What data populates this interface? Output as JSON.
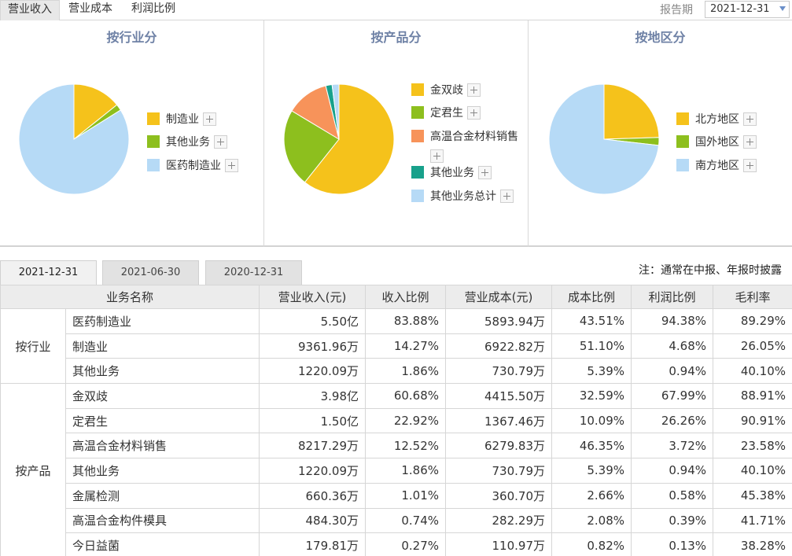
{
  "top_tabs": [
    "营业收入",
    "营业成本",
    "利润比例"
  ],
  "period": {
    "label": "报告期",
    "value": "2021-12-31"
  },
  "colors": {
    "yellow": "#F5C21B",
    "green": "#8DBF1E",
    "lightblue": "#B6DAF6",
    "orange": "#F7935A",
    "teal": "#18A18B",
    "title": "#6F82A6"
  },
  "panels": [
    {
      "title": "按行业分",
      "slices": [
        {
          "name": "制造业",
          "value": 14.27,
          "color": "#F5C21B"
        },
        {
          "name": "其他业务",
          "value": 1.86,
          "color": "#8DBF1E"
        },
        {
          "name": "医药制造业",
          "value": 83.88,
          "color": "#B6DAF6"
        }
      ]
    },
    {
      "title": "按产品分",
      "slices": [
        {
          "name": "金双歧",
          "value": 60.68,
          "color": "#F5C21B"
        },
        {
          "name": "定君生",
          "value": 22.92,
          "color": "#8DBF1E"
        },
        {
          "name": "高温合金材料销售",
          "value": 12.52,
          "color": "#F7935A"
        },
        {
          "name": "其他业务",
          "value": 1.86,
          "color": "#18A18B"
        },
        {
          "name": "其他业务总计",
          "value": 2.02,
          "color": "#B6DAF6"
        }
      ]
    },
    {
      "title": "按地区分",
      "slices": [
        {
          "name": "北方地区",
          "value": 24.5,
          "color": "#F5C21B"
        },
        {
          "name": "国外地区",
          "value": 2.3,
          "color": "#8DBF1E"
        },
        {
          "name": "南方地区",
          "value": 73.2,
          "color": "#B6DAF6"
        }
      ]
    }
  ],
  "date_tabs": [
    "2021-12-31",
    "2021-06-30",
    "2020-12-31"
  ],
  "note": "注：通常在中报、年报时披露",
  "table": {
    "headers": [
      "业务名称",
      "营业收入(元)",
      "收入比例",
      "营业成本(元)",
      "成本比例",
      "利润比例",
      "毛利率"
    ],
    "groups": [
      {
        "label": "按行业",
        "rows": [
          [
            "医药制造业",
            "5.50亿",
            "83.88%",
            "5893.94万",
            "43.51%",
            "94.38%",
            "89.29%"
          ],
          [
            "制造业",
            "9361.96万",
            "14.27%",
            "6922.82万",
            "51.10%",
            "4.68%",
            "26.05%"
          ],
          [
            "其他业务",
            "1220.09万",
            "1.86%",
            "730.79万",
            "5.39%",
            "0.94%",
            "40.10%"
          ]
        ]
      },
      {
        "label": "按产品",
        "rows": [
          [
            "金双歧",
            "3.98亿",
            "60.68%",
            "4415.50万",
            "32.59%",
            "67.99%",
            "88.91%"
          ],
          [
            "定君生",
            "1.50亿",
            "22.92%",
            "1367.46万",
            "10.09%",
            "26.26%",
            "90.91%"
          ],
          [
            "高温合金材料销售",
            "8217.29万",
            "12.52%",
            "6279.83万",
            "46.35%",
            "3.72%",
            "23.58%"
          ],
          [
            "其他业务",
            "1220.09万",
            "1.86%",
            "730.79万",
            "5.39%",
            "0.94%",
            "40.10%"
          ],
          [
            "金属检测",
            "660.36万",
            "1.01%",
            "360.70万",
            "2.66%",
            "0.58%",
            "45.38%"
          ],
          [
            "高温合金构件模具",
            "484.30万",
            "0.74%",
            "282.29万",
            "2.08%",
            "0.39%",
            "41.71%"
          ],
          [
            "今日益菌",
            "179.81万",
            "0.27%",
            "110.97万",
            "0.82%",
            "0.13%",
            "38.28%"
          ]
        ]
      }
    ]
  }
}
